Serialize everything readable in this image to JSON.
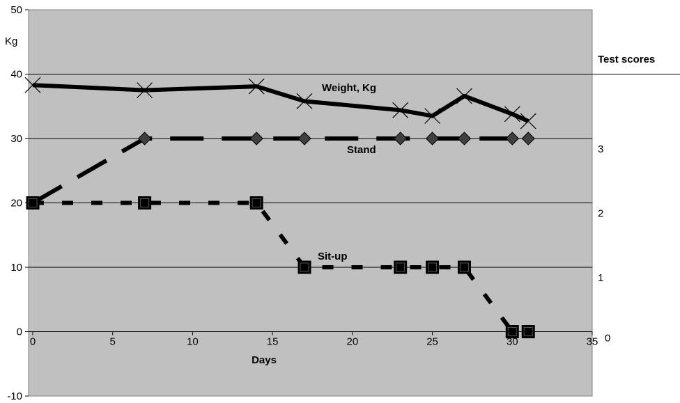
{
  "chart_data": {
    "type": "line",
    "title": "",
    "xlabel": "Days",
    "ylabel": "Kg",
    "y2label": "Test scores",
    "xlim": [
      0,
      35
    ],
    "ylim": [
      -10,
      50
    ],
    "y2lim": [
      0,
      3
    ],
    "x_ticks": [
      "0",
      "5",
      "10",
      "15",
      "20",
      "25",
      "30",
      "35"
    ],
    "y_ticks": [
      "-10",
      "0",
      "10",
      "20",
      "30",
      "40",
      "50"
    ],
    "y2_ticks": [
      "0",
      "1",
      "2",
      "3"
    ],
    "grid": "horizontal",
    "series": [
      {
        "name": "Weight, Kg",
        "axis": "left",
        "marker": "x",
        "line": "solid",
        "points": [
          [
            0,
            38.3
          ],
          [
            7,
            37.5
          ],
          [
            14,
            38.1
          ],
          [
            17,
            35.8
          ],
          [
            23,
            34.4
          ],
          [
            25,
            33.5
          ],
          [
            27,
            36.6
          ],
          [
            30,
            33.8
          ],
          [
            31,
            32.7
          ]
        ]
      },
      {
        "name": "Stand",
        "axis": "right",
        "marker": "diamond",
        "line": "long-dash",
        "points": [
          [
            0,
            2
          ],
          [
            7,
            3
          ],
          [
            14,
            3
          ],
          [
            17,
            3
          ],
          [
            23,
            3
          ],
          [
            25,
            3
          ],
          [
            27,
            3
          ],
          [
            30,
            3
          ],
          [
            31,
            3
          ]
        ]
      },
      {
        "name": "Sit-up",
        "axis": "right",
        "marker": "square",
        "line": "short-dash",
        "points": [
          [
            0,
            2
          ],
          [
            7,
            2
          ],
          [
            14,
            2
          ],
          [
            17,
            1
          ],
          [
            23,
            1
          ],
          [
            25,
            1
          ],
          [
            27,
            1
          ],
          [
            30,
            0
          ],
          [
            31,
            0
          ]
        ]
      }
    ],
    "colors": {
      "plot_background": "#c0c0c0",
      "line": "#000000",
      "diamond_fill": "#404040"
    }
  }
}
